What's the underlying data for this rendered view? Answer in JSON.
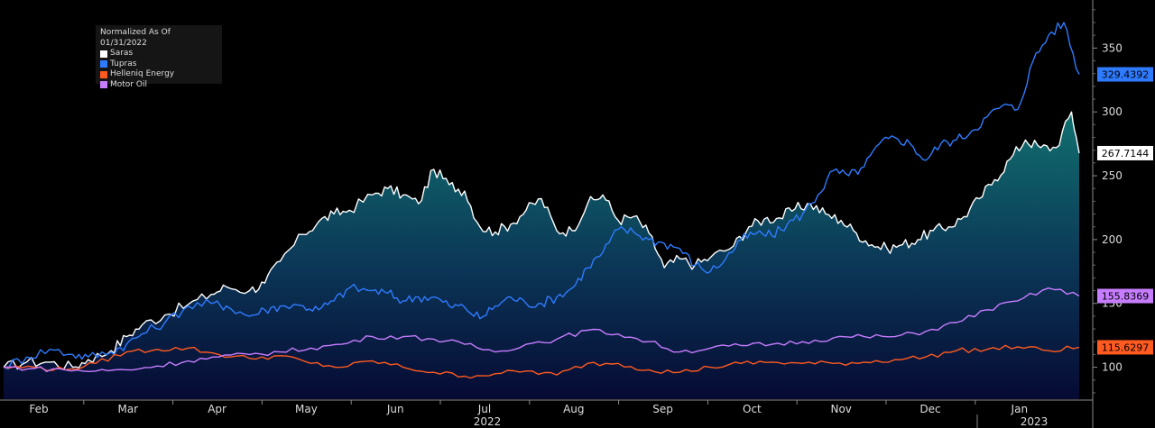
{
  "chart_data": {
    "type": "area",
    "legend_title": "Normalized As Of 01/31/2022",
    "legend_placement": "top-left",
    "x_months": [
      "Feb",
      "Mar",
      "Apr",
      "May",
      "Jun",
      "Jul",
      "Aug",
      "Sep",
      "Oct",
      "Nov",
      "Dec",
      "Jan"
    ],
    "x_years": [
      "2022",
      "2023"
    ],
    "y_ticks": [
      100,
      150,
      200,
      250,
      300,
      350
    ],
    "ylim": [
      75,
      382
    ],
    "xlim_months": [
      0,
      12
    ],
    "grid": false,
    "series": [
      {
        "name": "Saras",
        "color": "#ffffff",
        "last_value": "267.7144",
        "style": "area",
        "points": [
          [
            0.0,
            100
          ],
          [
            0.3,
            104
          ],
          [
            0.6,
            104
          ],
          [
            0.9,
            100
          ],
          [
            1.1,
            106
          ],
          [
            1.4,
            113
          ],
          [
            1.6,
            124
          ],
          [
            1.8,
            133
          ],
          [
            2.1,
            141
          ],
          [
            2.4,
            149
          ],
          [
            2.7,
            157
          ],
          [
            2.9,
            163
          ],
          [
            3.2,
            160
          ],
          [
            3.4,
            166
          ],
          [
            3.6,
            183
          ],
          [
            3.9,
            204
          ],
          [
            4.1,
            214
          ],
          [
            4.3,
            220
          ],
          [
            4.5,
            223
          ],
          [
            4.8,
            235
          ],
          [
            5.0,
            240
          ],
          [
            5.2,
            235
          ],
          [
            5.4,
            228
          ],
          [
            5.6,
            255
          ],
          [
            5.8,
            243
          ],
          [
            6.0,
            238
          ],
          [
            6.2,
            210
          ],
          [
            6.4,
            206
          ],
          [
            6.6,
            212
          ],
          [
            6.8,
            223
          ],
          [
            7.0,
            232
          ],
          [
            7.2,
            207
          ],
          [
            7.4,
            207
          ],
          [
            7.6,
            228
          ],
          [
            7.8,
            235
          ],
          [
            8.0,
            215
          ],
          [
            8.2,
            218
          ],
          [
            8.4,
            205
          ],
          [
            8.6,
            178
          ],
          [
            8.8,
            185
          ],
          [
            9.0,
            180
          ],
          [
            9.2,
            186
          ],
          [
            9.5,
            195
          ],
          [
            9.7,
            210
          ],
          [
            9.9,
            216
          ],
          [
            10.1,
            217
          ],
          [
            10.3,
            224
          ],
          [
            10.5,
            228
          ],
          [
            10.7,
            220
          ],
          [
            10.9,
            215
          ],
          [
            11.1,
            205
          ],
          [
            11.3,
            196
          ],
          [
            11.5,
            193
          ],
          [
            11.7,
            196
          ],
          [
            11.9,
            200
          ],
          [
            12.1,
            207
          ],
          [
            12.3,
            210
          ],
          [
            12.5,
            218
          ],
          [
            12.7,
            232
          ],
          [
            12.9,
            247
          ],
          [
            13.1,
            263
          ],
          [
            13.3,
            278
          ],
          [
            13.5,
            272
          ],
          [
            13.7,
            272
          ],
          [
            13.9,
            300
          ],
          [
            14.0,
            267.7
          ]
        ]
      },
      {
        "name": "Tupras",
        "color": "#2f7bff",
        "last_value": "329.4392",
        "style": "line",
        "points": [
          [
            0.0,
            100
          ],
          [
            0.3,
            108
          ],
          [
            0.6,
            114
          ],
          [
            0.9,
            110
          ],
          [
            1.1,
            108
          ],
          [
            1.4,
            112
          ],
          [
            1.6,
            118
          ],
          [
            1.8,
            126
          ],
          [
            2.1,
            135
          ],
          [
            2.4,
            148
          ],
          [
            2.7,
            150
          ],
          [
            2.9,
            148
          ],
          [
            3.2,
            140
          ],
          [
            3.4,
            145
          ],
          [
            3.6,
            148
          ],
          [
            3.9,
            148
          ],
          [
            4.1,
            145
          ],
          [
            4.3,
            152
          ],
          [
            4.5,
            162
          ],
          [
            4.8,
            160
          ],
          [
            5.0,
            158
          ],
          [
            5.2,
            152
          ],
          [
            5.4,
            155
          ],
          [
            5.6,
            155
          ],
          [
            5.8,
            148
          ],
          [
            6.0,
            147
          ],
          [
            6.2,
            138
          ],
          [
            6.4,
            148
          ],
          [
            6.6,
            155
          ],
          [
            6.8,
            150
          ],
          [
            7.0,
            150
          ],
          [
            7.2,
            155
          ],
          [
            7.4,
            162
          ],
          [
            7.6,
            178
          ],
          [
            7.8,
            190
          ],
          [
            8.0,
            208
          ],
          [
            8.2,
            206
          ],
          [
            8.4,
            200
          ],
          [
            8.6,
            197
          ],
          [
            8.8,
            193
          ],
          [
            9.0,
            180
          ],
          [
            9.2,
            175
          ],
          [
            9.4,
            185
          ],
          [
            9.6,
            200
          ],
          [
            9.8,
            205
          ],
          [
            10.0,
            203
          ],
          [
            10.2,
            212
          ],
          [
            10.4,
            220
          ],
          [
            10.6,
            235
          ],
          [
            10.8,
            254
          ],
          [
            11.0,
            250
          ],
          [
            11.2,
            257
          ],
          [
            11.4,
            275
          ],
          [
            11.6,
            280
          ],
          [
            11.8,
            275
          ],
          [
            12.0,
            262
          ],
          [
            12.2,
            275
          ],
          [
            12.4,
            278
          ],
          [
            12.6,
            285
          ],
          [
            12.8,
            296
          ],
          [
            13.0,
            305
          ],
          [
            13.2,
            302
          ],
          [
            13.4,
            340
          ],
          [
            13.6,
            360
          ],
          [
            13.8,
            370
          ],
          [
            14.0,
            329.4
          ]
        ]
      },
      {
        "name": "Helleniq Energy",
        "color": "#ff5a1f",
        "last_value": "115.6297",
        "style": "line",
        "points": [
          [
            0.0,
            100
          ],
          [
            0.4,
            100
          ],
          [
            0.8,
            98
          ],
          [
            1.2,
            103
          ],
          [
            1.6,
            112
          ],
          [
            2.0,
            114
          ],
          [
            2.4,
            115
          ],
          [
            2.8,
            110
          ],
          [
            3.2,
            107
          ],
          [
            3.6,
            109
          ],
          [
            4.0,
            103
          ],
          [
            4.4,
            100
          ],
          [
            4.8,
            105
          ],
          [
            5.2,
            100
          ],
          [
            5.6,
            96
          ],
          [
            6.0,
            93
          ],
          [
            6.4,
            95
          ],
          [
            6.8,
            97
          ],
          [
            7.2,
            94
          ],
          [
            7.6,
            103
          ],
          [
            8.0,
            103
          ],
          [
            8.4,
            98
          ],
          [
            8.8,
            96
          ],
          [
            9.2,
            100
          ],
          [
            9.6,
            103
          ],
          [
            10.0,
            104
          ],
          [
            10.4,
            103
          ],
          [
            10.8,
            103
          ],
          [
            11.2,
            104
          ],
          [
            11.6,
            106
          ],
          [
            12.0,
            108
          ],
          [
            12.4,
            113
          ],
          [
            12.8,
            114
          ],
          [
            13.2,
            116
          ],
          [
            13.6,
            113
          ],
          [
            14.0,
            115.6
          ]
        ]
      },
      {
        "name": "Motor Oil",
        "color": "#c77dff",
        "last_value": "155.8369",
        "style": "line",
        "points": [
          [
            0.0,
            100
          ],
          [
            0.4,
            99
          ],
          [
            0.8,
            98
          ],
          [
            1.2,
            97
          ],
          [
            1.6,
            98
          ],
          [
            2.0,
            101
          ],
          [
            2.4,
            105
          ],
          [
            2.8,
            108
          ],
          [
            3.2,
            110
          ],
          [
            3.6,
            112
          ],
          [
            4.0,
            115
          ],
          [
            4.4,
            118
          ],
          [
            4.8,
            124
          ],
          [
            5.2,
            124
          ],
          [
            5.6,
            122
          ],
          [
            6.0,
            118
          ],
          [
            6.4,
            112
          ],
          [
            6.8,
            118
          ],
          [
            7.2,
            122
          ],
          [
            7.6,
            129
          ],
          [
            8.0,
            126
          ],
          [
            8.4,
            120
          ],
          [
            8.8,
            112
          ],
          [
            9.2,
            115
          ],
          [
            9.6,
            117
          ],
          [
            10.0,
            118
          ],
          [
            10.4,
            120
          ],
          [
            10.8,
            123
          ],
          [
            11.2,
            124
          ],
          [
            11.6,
            124
          ],
          [
            12.0,
            128
          ],
          [
            12.4,
            135
          ],
          [
            12.8,
            145
          ],
          [
            13.2,
            152
          ],
          [
            13.6,
            162
          ],
          [
            14.0,
            155.8
          ]
        ]
      }
    ]
  }
}
